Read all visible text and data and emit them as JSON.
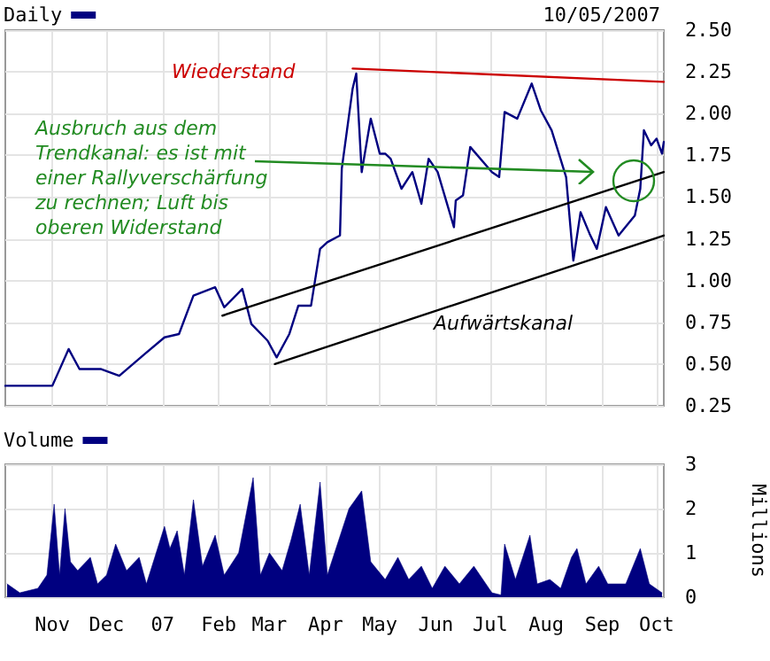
{
  "chart_data": [
    {
      "type": "line",
      "subtitle": "10/05/2007",
      "legend": "top left",
      "grid": true,
      "marker": "none",
      "line_style": "solid",
      "tick_labels": "y",
      "annotations": [
        "Wiederstand",
        "Ausbruch aus dem\nTrendkanal: es ist mit\neiner Rallyverschärfung\nzu rechnen; Luft bis\noberen Widerstand",
        "Aufwärtskanal"
      ],
      "xlim": [
        "2006-10-06",
        "2007-10-05"
      ],
      "xticks": [
        {
          "value": "2006-11-01",
          "label": null
        },
        {
          "value": "2006-12-01",
          "label": null
        },
        {
          "value": "2007-01-01",
          "label": null
        },
        {
          "value": "2007-02-01",
          "label": null
        },
        {
          "value": "2007-03-01",
          "label": null
        },
        {
          "value": "2007-04-01",
          "label": null
        },
        {
          "value": "2007-05-01",
          "label": null
        },
        {
          "value": "2007-06-01",
          "label": null
        },
        {
          "value": "2007-07-01",
          "label": null
        },
        {
          "value": "2007-08-01",
          "label": null
        },
        {
          "value": "2007-09-01",
          "label": null
        },
        {
          "value": "2007-10-01",
          "label": null
        }
      ],
      "ylim": [
        0.25,
        2.5
      ],
      "yticks": [
        0.25,
        {
          "value": 0.5,
          "label": "0.50"
        },
        0.75,
        {
          "value": 1,
          "label": "1.00"
        },
        1.25,
        {
          "value": 1.5,
          "label": "1.50"
        },
        1.75,
        {
          "value": 2,
          "label": "2.00"
        },
        2.25,
        {
          "value": 2.5,
          "label": "2.50"
        }
      ],
      "series": [
        {
          "name": "Daily",
          "color": "#000080",
          "x": [
            "2006-10-06",
            "2006-11-01",
            "2006-11-10",
            "2006-11-16",
            "2006-11-28",
            "2006-12-08",
            "2006-12-22",
            "2007-01-02",
            "2007-01-10",
            "2007-01-18",
            "2007-01-30",
            "2007-02-04",
            "2007-02-14",
            "2007-02-19",
            "2007-02-28",
            "2007-03-05",
            "2007-03-12",
            "2007-03-17",
            "2007-03-24",
            "2007-03-29",
            "2007-04-02",
            "2007-04-09",
            "2007-04-10",
            "2007-04-16",
            "2007-04-18",
            "2007-04-21",
            "2007-04-26",
            "2007-05-01",
            "2007-05-04",
            "2007-05-07",
            "2007-05-13",
            "2007-05-19",
            "2007-05-24",
            "2007-05-28",
            "2007-06-02",
            "2007-06-11",
            "2007-06-12",
            "2007-06-16",
            "2007-06-20",
            "2007-07-02",
            "2007-07-06",
            "2007-07-09",
            "2007-07-16",
            "2007-07-24",
            "2007-07-29",
            "2007-08-04",
            "2007-08-08",
            "2007-08-12",
            "2007-08-16",
            "2007-08-20",
            "2007-08-25",
            "2007-08-29",
            "2007-09-03",
            "2007-09-10",
            "2007-09-19",
            "2007-09-22",
            "2007-09-24",
            "2007-09-28",
            "2007-10-01",
            "2007-10-04",
            "2007-10-05"
          ],
          "values": [
            0.37,
            0.37,
            0.59,
            0.47,
            0.47,
            0.43,
            0.56,
            0.66,
            0.68,
            0.91,
            0.96,
            0.84,
            0.95,
            0.74,
            0.64,
            0.54,
            0.68,
            0.85,
            0.85,
            1.19,
            1.23,
            1.27,
            1.67,
            2.15,
            2.24,
            1.65,
            1.97,
            1.76,
            1.76,
            1.73,
            1.55,
            1.65,
            1.46,
            1.73,
            1.65,
            1.32,
            1.48,
            1.51,
            1.8,
            1.65,
            1.62,
            2.01,
            1.97,
            2.18,
            2.02,
            1.9,
            1.76,
            1.62,
            1.12,
            1.41,
            1.28,
            1.19,
            1.44,
            1.27,
            1.39,
            1.55,
            1.9,
            1.81,
            1.85,
            1.76,
            1.83
          ]
        },
        {
          "color": "#cc0000",
          "x": [
            "2007-04-16",
            "2007-10-05"
          ],
          "values": [
            2.27,
            2.19
          ]
        },
        {
          "color": "#000000",
          "x": [
            "2007-02-03",
            "2007-10-05"
          ],
          "values": [
            0.79,
            1.65
          ]
        },
        {
          "color": "#000000",
          "x": [
            "2007-03-04",
            "2007-10-05"
          ],
          "values": [
            0.5,
            1.27
          ]
        }
      ]
    },
    {
      "type": "area",
      "legend": "top left",
      "grid": true,
      "marker": "none",
      "ylabel": "Millions",
      "xlim": [
        "2006-10-06",
        "2007-10-05"
      ],
      "xticks": [
        {
          "value": "2006-11-01",
          "label": "Nov"
        },
        {
          "value": "2006-12-01",
          "label": "Dec"
        },
        {
          "value": "2007-01-01",
          "label": "07"
        },
        {
          "value": "2007-02-01",
          "label": "Feb"
        },
        {
          "value": "2007-03-01",
          "label": "Mar"
        },
        {
          "value": "2007-04-01",
          "label": "Apr"
        },
        {
          "value": "2007-05-01",
          "label": "May"
        },
        {
          "value": "2007-06-01",
          "label": "Jun"
        },
        {
          "value": "2007-07-01",
          "label": "Jul"
        },
        {
          "value": "2007-08-01",
          "label": "Aug"
        },
        {
          "value": "2007-09-01",
          "label": "Sep"
        },
        {
          "value": "2007-10-01",
          "label": "Oct"
        }
      ],
      "ylim": [
        0,
        3
      ],
      "yticks": [
        0,
        1,
        2,
        3
      ],
      "series": [
        {
          "name": "Volume",
          "color": "#000080",
          "x": [
            "2006-10-07",
            "2006-10-14",
            "2006-10-24",
            "2006-10-29",
            "2006-11-02",
            "2006-11-05",
            "2006-11-08",
            "2006-11-11",
            "2006-11-15",
            "2006-11-22",
            "2006-11-26",
            "2006-12-01",
            "2006-12-06",
            "2006-12-12",
            "2006-12-19",
            "2006-12-23",
            "2007-01-02",
            "2007-01-05",
            "2007-01-09",
            "2007-01-13",
            "2007-01-18",
            "2007-01-23",
            "2007-01-30",
            "2007-02-04",
            "2007-02-12",
            "2007-02-20",
            "2007-02-24",
            "2007-03-01",
            "2007-03-08",
            "2007-03-13",
            "2007-03-18",
            "2007-03-23",
            "2007-03-29",
            "2007-04-02",
            "2007-04-10",
            "2007-04-14",
            "2007-04-21",
            "2007-04-26",
            "2007-05-04",
            "2007-05-11",
            "2007-05-17",
            "2007-05-24",
            "2007-05-30",
            "2007-06-06",
            "2007-06-14",
            "2007-06-22",
            "2007-07-02",
            "2007-07-07",
            "2007-07-09",
            "2007-07-15",
            "2007-07-23",
            "2007-07-27",
            "2007-08-03",
            "2007-08-09",
            "2007-08-15",
            "2007-08-18",
            "2007-08-23",
            "2007-08-30",
            "2007-09-04",
            "2007-09-14",
            "2007-09-22",
            "2007-09-27",
            "2007-10-04"
          ],
          "values": [
            0.3,
            0.1,
            0.2,
            0.5,
            2.1,
            0.5,
            2.0,
            0.8,
            0.6,
            0.9,
            0.3,
            0.5,
            1.2,
            0.6,
            0.9,
            0.3,
            1.6,
            1.1,
            1.5,
            0.5,
            2.2,
            0.7,
            1.4,
            0.5,
            1.0,
            2.7,
            0.5,
            1.0,
            0.6,
            1.3,
            2.1,
            0.5,
            2.6,
            0.5,
            1.5,
            2.0,
            2.4,
            0.8,
            0.4,
            0.9,
            0.4,
            0.7,
            0.2,
            0.7,
            0.3,
            0.7,
            0.1,
            0.05,
            1.2,
            0.4,
            1.4,
            0.3,
            0.4,
            0.2,
            0.9,
            1.1,
            0.3,
            0.7,
            0.3,
            0.3,
            1.1,
            0.3,
            0.1
          ]
        }
      ]
    }
  ]
}
